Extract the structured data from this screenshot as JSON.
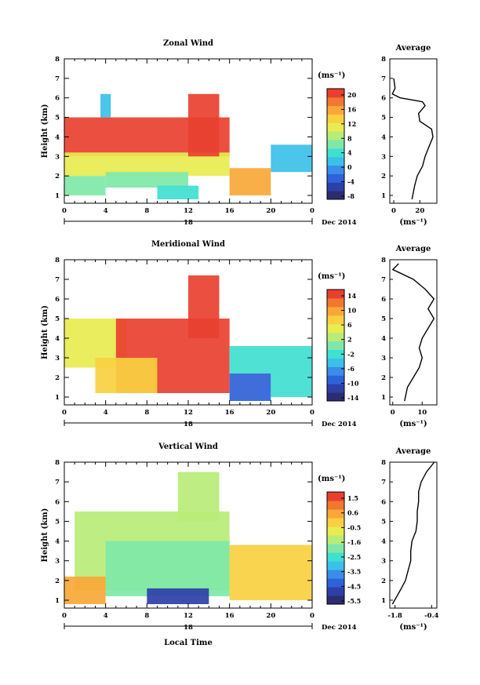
{
  "colors": {
    "palette": [
      "#2b2d6e",
      "#2e3fa8",
      "#2f62d8",
      "#3a8de8",
      "#3cc0e8",
      "#40e0d0",
      "#7fe8a8",
      "#b8ec78",
      "#e8ec50",
      "#f8d040",
      "#f8a838",
      "#f07830",
      "#e84030"
    ]
  },
  "chart_data": [
    {
      "type": "heatmap",
      "title": "Zonal Wind",
      "ylabel": "Height (km)",
      "x_ticks": [
        "0",
        "4",
        "8",
        "12",
        "16",
        "20",
        "0"
      ],
      "xlim": [
        0,
        24
      ],
      "y_ticks": [
        "1",
        "2",
        "3",
        "4",
        "5",
        "6",
        "7",
        "8"
      ],
      "ylim": [
        0.6,
        8
      ],
      "date_label": "18",
      "date_suffix": "Dec 2014",
      "colorbar": {
        "unit": "(ms⁻¹)",
        "ticks": [
          "20",
          "16",
          "12",
          "8",
          "4",
          "0",
          "-4",
          "-8"
        ],
        "range": [
          -10,
          22
        ]
      },
      "fields": [
        {
          "x": [
            0,
            16
          ],
          "y": [
            3,
            5
          ],
          "value": 21
        },
        {
          "x": [
            0,
            16
          ],
          "y": [
            2,
            3.2
          ],
          "value": 12
        },
        {
          "x": [
            4,
            12
          ],
          "y": [
            1.4,
            2.2
          ],
          "value": 5
        },
        {
          "x": [
            9,
            13
          ],
          "y": [
            0.8,
            1.5
          ],
          "value": 2
        },
        {
          "x": [
            12,
            15
          ],
          "y": [
            3,
            6.2
          ],
          "value": 21
        },
        {
          "x": [
            16,
            20
          ],
          "y": [
            1,
            2.4
          ],
          "value": 17
        },
        {
          "x": [
            20,
            24
          ],
          "y": [
            2.2,
            3.6
          ],
          "value": 1
        },
        {
          "x": [
            0,
            4
          ],
          "y": [
            1,
            2
          ],
          "value": 6
        },
        {
          "x": [
            3.5,
            4.5
          ],
          "y": [
            5,
            6.2
          ],
          "value": 1
        }
      ],
      "average": {
        "title": "Average",
        "x_ticks": [
          "0",
          "20"
        ],
        "xlim": [
          -3,
          33
        ],
        "xlabel": "(ms⁻¹)",
        "height": [
          0.8,
          1.5,
          2,
          2.5,
          3,
          3.5,
          4,
          4.4,
          4.8,
          5.2,
          5.6,
          5.8,
          6.0,
          6.2,
          6.5,
          7.0
        ],
        "value": [
          14,
          16,
          18,
          22,
          24,
          27,
          30,
          29,
          20,
          19,
          24,
          22,
          5,
          -1,
          1,
          0
        ]
      }
    },
    {
      "type": "heatmap",
      "title": "Meridional Wind",
      "ylabel": "Height (km)",
      "x_ticks": [
        "0",
        "4",
        "8",
        "12",
        "16",
        "20",
        "0"
      ],
      "xlim": [
        0,
        24
      ],
      "y_ticks": [
        "1",
        "2",
        "3",
        "4",
        "5",
        "6",
        "7",
        "8"
      ],
      "ylim": [
        0.6,
        8
      ],
      "date_label": "18",
      "date_suffix": "Dec 2014",
      "colorbar": {
        "unit": "(ms⁻¹)",
        "ticks": [
          "14",
          "10",
          "6",
          "2",
          "-2",
          "-6",
          "-10",
          "-14"
        ],
        "range": [
          -16,
          16
        ]
      },
      "fields": [
        {
          "x": [
            0,
            6
          ],
          "y": [
            2.5,
            5
          ],
          "value": 6
        },
        {
          "x": [
            5,
            16
          ],
          "y": [
            1.2,
            5
          ],
          "value": 15
        },
        {
          "x": [
            12,
            15
          ],
          "y": [
            4,
            7.2
          ],
          "value": 15
        },
        {
          "x": [
            3,
            9
          ],
          "y": [
            1.2,
            3
          ],
          "value": 8
        },
        {
          "x": [
            16,
            20
          ],
          "y": [
            0.8,
            2.2
          ],
          "value": -10
        },
        {
          "x": [
            16,
            24
          ],
          "y": [
            2.2,
            3.6
          ],
          "value": -2
        },
        {
          "x": [
            20,
            24
          ],
          "y": [
            1,
            2.2
          ],
          "value": -4
        }
      ],
      "average": {
        "title": "Average",
        "x_ticks": [
          "0",
          "10"
        ],
        "xlim": [
          -1,
          15
        ],
        "xlabel": "(ms⁻¹)",
        "height": [
          0.8,
          1.5,
          2,
          2.5,
          3,
          3.5,
          4,
          4.5,
          5,
          5.5,
          6,
          6.5,
          7,
          7.5,
          7.8
        ],
        "value": [
          4,
          5,
          7,
          9,
          10,
          9,
          10,
          12,
          14,
          12,
          14,
          11,
          7,
          0,
          2
        ]
      }
    },
    {
      "type": "heatmap",
      "title": "Vertical Wind",
      "ylabel": "Height (km)",
      "xlabel": "Local Time",
      "x_ticks": [
        "0",
        "4",
        "8",
        "12",
        "16",
        "20",
        "0"
      ],
      "xlim": [
        0,
        24
      ],
      "y_ticks": [
        "1",
        "2",
        "3",
        "4",
        "5",
        "6",
        "7",
        "8"
      ],
      "ylim": [
        0.6,
        8
      ],
      "date_label": "18",
      "date_suffix": "Dec 2014",
      "colorbar": {
        "unit": "(ms⁻¹)",
        "ticks": [
          "1.5",
          "0.6",
          "-0.5",
          "-1.6",
          "-2.5",
          "-3.5",
          "-4.5",
          "-5.5"
        ],
        "range": [
          -6,
          2
        ]
      },
      "fields": [
        {
          "x": [
            1,
            16
          ],
          "y": [
            1.5,
            5.5
          ],
          "value": -1.2
        },
        {
          "x": [
            4,
            16
          ],
          "y": [
            1.2,
            4
          ],
          "value": -2.2
        },
        {
          "x": [
            11,
            15
          ],
          "y": [
            5,
            7.5
          ],
          "value": -1.2
        },
        {
          "x": [
            8,
            14
          ],
          "y": [
            0.8,
            1.6
          ],
          "value": -5.2
        },
        {
          "x": [
            0,
            4
          ],
          "y": [
            0.8,
            2.2
          ],
          "value": 0.6
        },
        {
          "x": [
            16,
            24
          ],
          "y": [
            1,
            3.8
          ],
          "value": 0.3
        }
      ],
      "average": {
        "title": "Average",
        "x_ticks": [
          "-1.8",
          "-0.4"
        ],
        "xlim": [
          -2.0,
          -0.2
        ],
        "xlabel": "(ms⁻¹)",
        "height": [
          0.8,
          1.5,
          2,
          2.5,
          3,
          3.5,
          4,
          4.5,
          5,
          5.5,
          6,
          6.5,
          7,
          7.5,
          8
        ],
        "value": [
          -1.9,
          -1.6,
          -1.4,
          -1.3,
          -1.2,
          -1.2,
          -1.15,
          -1.0,
          -0.95,
          -0.95,
          -0.9,
          -0.9,
          -0.8,
          -0.6,
          -0.3
        ]
      }
    }
  ]
}
